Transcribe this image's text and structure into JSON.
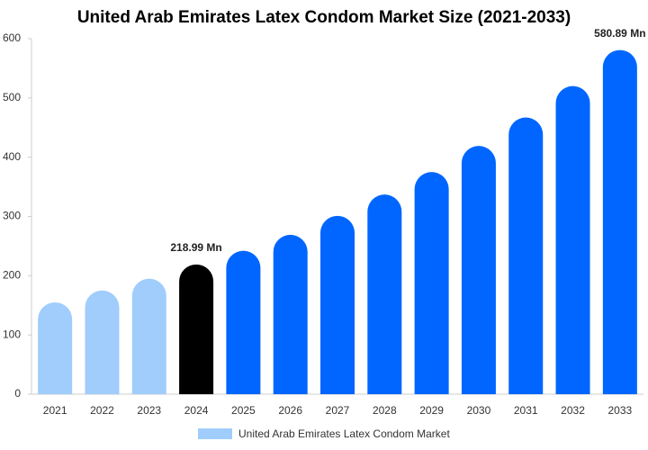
{
  "chart_data": {
    "type": "bar",
    "title": "United Arab Emirates Latex Condom Market Size (2021-2033)",
    "categories": [
      "2021",
      "2022",
      "2023",
      "2024",
      "2025",
      "2026",
      "2027",
      "2028",
      "2029",
      "2030",
      "2031",
      "2032",
      "2033"
    ],
    "series": [
      {
        "name": "United Arab Emirates Latex Condom Market",
        "color": "#a0cdfc",
        "colors": [
          "#a0cdfc",
          "#a0cdfc",
          "#a0cdfc",
          "#000000",
          "#0066ff",
          "#0066ff",
          "#0066ff",
          "#0066ff",
          "#0066ff",
          "#0066ff",
          "#0066ff",
          "#0066ff",
          "#0066ff"
        ],
        "values": [
          155,
          175,
          195,
          218.99,
          242,
          269,
          301,
          337,
          375,
          419,
          467,
          520,
          580.89
        ],
        "value_labels": [
          null,
          null,
          null,
          "218.99 Mn",
          null,
          null,
          null,
          null,
          null,
          null,
          null,
          null,
          "580.89 Mn"
        ]
      }
    ],
    "ylim": [
      0,
      600
    ],
    "yticks": [
      0,
      100,
      200,
      300,
      400,
      500,
      600
    ],
    "grid": false
  }
}
